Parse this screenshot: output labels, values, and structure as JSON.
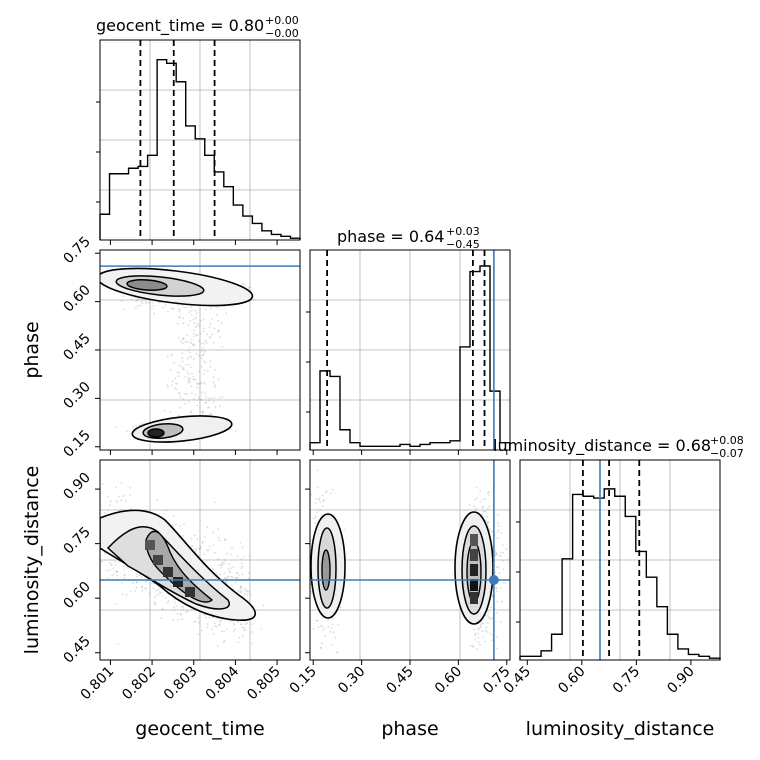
{
  "chart_data": {
    "type": "corner",
    "parameters": [
      "geocent_time",
      "phase",
      "luminosity_distance"
    ],
    "truths": {
      "phase": 0.71,
      "luminosity_distance": 0.65
    },
    "titles": [
      {
        "param": "geocent_time",
        "text": "geocent_time = 0.80",
        "sup": "+0.00",
        "sub": "−0.00"
      },
      {
        "param": "phase",
        "text": "phase = 0.64",
        "sup": "+0.03",
        "sub": "−0.45"
      },
      {
        "param": "luminosity_distance",
        "text": "luminosity_distance = 0.68",
        "sup": "+0.08",
        "sub": "−0.07"
      }
    ],
    "axis_ranges": {
      "geocent_time": [
        0.80075,
        0.80555
      ],
      "phase": [
        0.14,
        0.76
      ],
      "luminosity_distance": [
        0.43,
        0.98
      ]
    },
    "ticks": {
      "geocent_time": [
        "0.801",
        "0.802",
        "0.803",
        "0.804",
        "0.805"
      ],
      "phase": [
        "0.15",
        "0.30",
        "0.45",
        "0.60",
        "0.75"
      ],
      "luminosity_distance": [
        "0.45",
        "0.60",
        "0.75",
        "0.90"
      ]
    },
    "quantile_lines": {
      "geocent_time": [
        0.80172,
        0.80252,
        0.8035
      ],
      "phase": [
        0.193,
        0.645,
        0.681
      ],
      "luminosity_distance": [
        0.603,
        0.675,
        0.758
      ]
    },
    "histograms": {
      "geocent_time": [
        0.14,
        0.36,
        0.36,
        0.39,
        0.4,
        0.46,
        0.98,
        0.96,
        0.86,
        0.62,
        0.55,
        0.46,
        0.37,
        0.29,
        0.19,
        0.13,
        0.09,
        0.05,
        0.03,
        0.02,
        0.01
      ],
      "phase": [
        0.04,
        0.43,
        0.4,
        0.11,
        0.04,
        0.02,
        0.02,
        0.02,
        0.02,
        0.03,
        0.02,
        0.03,
        0.04,
        0.04,
        0.05,
        0.56,
        0.97,
        1.0,
        0.32,
        0.04
      ],
      "luminosity_distance": [
        0.02,
        0.02,
        0.05,
        0.14,
        0.55,
        0.9,
        0.89,
        0.88,
        0.93,
        0.89,
        0.78,
        0.59,
        0.45,
        0.29,
        0.14,
        0.06,
        0.03,
        0.02,
        0.01
      ]
    },
    "hist_bins": {
      "geocent_time": [
        0.80075,
        0.80555
      ],
      "phase": [
        0.14,
        0.76
      ],
      "luminosity_distance": [
        0.43,
        0.98
      ]
    },
    "density_peaks": [
      {
        "x": "geocent_time",
        "y": "phase",
        "peaks": [
          [
            0.80218,
            0.655
          ],
          [
            0.8022,
            0.2
          ]
        ]
      },
      {
        "x": "geocent_time",
        "y": "luminosity_distance",
        "peaks": [
          [
            0.80222,
            0.7
          ],
          [
            0.80275,
            0.62
          ]
        ]
      },
      {
        "x": "phase",
        "y": "luminosity_distance",
        "peaks": [
          [
            0.18,
            0.68
          ],
          [
            0.685,
            0.64
          ]
        ]
      }
    ],
    "grid": true,
    "colors": {
      "histogram": "#000000",
      "truth": "#3d7bb8",
      "points": "#9a9a9a"
    }
  }
}
